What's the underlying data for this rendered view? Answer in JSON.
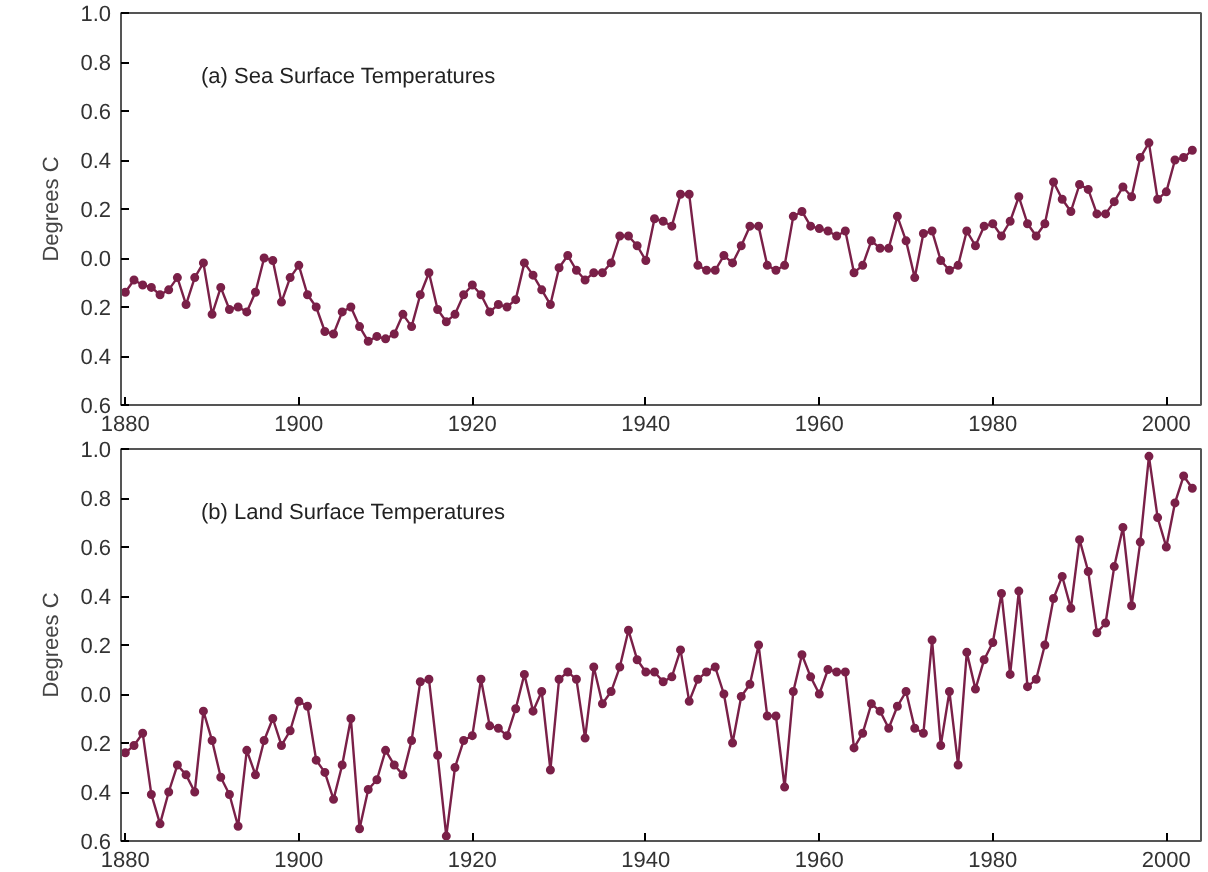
{
  "chart_data": [
    {
      "type": "line",
      "ylabel": "Degrees C",
      "annotations": [
        "(a) Sea Surface Temperatures"
      ],
      "marker": "circle",
      "line_style": "solid",
      "grid": false,
      "x": [
        1880,
        1881,
        1882,
        1883,
        1884,
        1885,
        1886,
        1887,
        1888,
        1889,
        1890,
        1891,
        1892,
        1893,
        1894,
        1895,
        1896,
        1897,
        1898,
        1899,
        1900,
        1901,
        1902,
        1903,
        1904,
        1905,
        1906,
        1907,
        1908,
        1909,
        1910,
        1911,
        1912,
        1913,
        1914,
        1915,
        1916,
        1917,
        1918,
        1919,
        1920,
        1921,
        1922,
        1923,
        1924,
        1925,
        1926,
        1927,
        1928,
        1929,
        1930,
        1931,
        1932,
        1933,
        1934,
        1935,
        1936,
        1937,
        1938,
        1939,
        1940,
        1941,
        1942,
        1943,
        1944,
        1945,
        1946,
        1947,
        1948,
        1949,
        1950,
        1951,
        1952,
        1953,
        1954,
        1955,
        1956,
        1957,
        1958,
        1959,
        1960,
        1961,
        1962,
        1963,
        1964,
        1965,
        1966,
        1967,
        1968,
        1969,
        1970,
        1971,
        1972,
        1973,
        1974,
        1975,
        1976,
        1977,
        1978,
        1979,
        1980,
        1981,
        1982,
        1983,
        1984,
        1985,
        1986,
        1987,
        1988,
        1989,
        1990,
        1991,
        1992,
        1993,
        1994,
        1995,
        1996,
        1997,
        1998,
        1999,
        2000,
        2001,
        2002,
        2003
      ],
      "series": [
        {
          "color": "#7a2048",
          "values": [
            -0.14,
            -0.09,
            -0.11,
            -0.12,
            -0.15,
            -0.13,
            -0.08,
            -0.19,
            -0.08,
            -0.02,
            -0.23,
            -0.12,
            -0.21,
            -0.2,
            -0.22,
            -0.14,
            0.0,
            -0.01,
            -0.18,
            -0.08,
            -0.03,
            -0.15,
            -0.2,
            -0.3,
            -0.31,
            -0.22,
            -0.2,
            -0.28,
            -0.34,
            -0.32,
            -0.33,
            -0.31,
            -0.23,
            -0.28,
            -0.15,
            -0.06,
            -0.21,
            -0.26,
            -0.23,
            -0.15,
            -0.11,
            -0.15,
            -0.22,
            -0.19,
            -0.2,
            -0.17,
            -0.02,
            -0.07,
            -0.13,
            -0.19,
            -0.04,
            0.01,
            -0.05,
            -0.09,
            -0.06,
            -0.06,
            -0.02,
            0.09,
            0.09,
            0.05,
            -0.01,
            0.16,
            0.15,
            0.13,
            0.26,
            0.26,
            -0.03,
            -0.05,
            -0.05,
            0.01,
            -0.02,
            0.05,
            0.13,
            0.13,
            -0.03,
            -0.05,
            -0.03,
            0.17,
            0.19,
            0.13,
            0.12,
            0.11,
            0.09,
            0.11,
            -0.06,
            -0.03,
            0.07,
            0.04,
            0.04,
            0.17,
            0.07,
            -0.08,
            0.1,
            0.11,
            -0.01,
            -0.05,
            -0.03,
            0.11,
            0.05,
            0.13,
            0.14,
            0.09,
            0.15,
            0.25,
            0.14,
            0.09,
            0.14,
            0.31,
            0.24,
            0.19,
            0.3,
            0.28,
            0.18,
            0.18,
            0.23,
            0.29,
            0.25,
            0.41,
            0.47,
            0.24,
            0.27,
            0.4,
            0.41,
            0.44
          ]
        }
      ],
      "xlim": [
        1879.5,
        2004
      ],
      "xticks": [
        1880,
        1900,
        1920,
        1940,
        1960,
        1980,
        2000
      ],
      "ylim": [
        -0.6,
        1.0
      ],
      "yticks": [
        {
          "value": -0.6,
          "label": "0.6"
        },
        {
          "value": -0.4,
          "label": "0.4"
        },
        {
          "value": -0.2,
          "label": "0.2"
        },
        {
          "value": 0.0,
          "label": "0.0"
        },
        0.2,
        0.4,
        0.6,
        0.8,
        {
          "value": 1.0,
          "label": "1.0"
        }
      ]
    },
    {
      "type": "line",
      "ylabel": "Degrees C",
      "annotations": [
        "(b) Land Surface Temperatures"
      ],
      "marker": "circle",
      "line_style": "solid",
      "grid": false,
      "x": [
        1880,
        1881,
        1882,
        1883,
        1884,
        1885,
        1886,
        1887,
        1888,
        1889,
        1890,
        1891,
        1892,
        1893,
        1894,
        1895,
        1896,
        1897,
        1898,
        1899,
        1900,
        1901,
        1902,
        1903,
        1904,
        1905,
        1906,
        1907,
        1908,
        1909,
        1910,
        1911,
        1912,
        1913,
        1914,
        1915,
        1916,
        1917,
        1918,
        1919,
        1920,
        1921,
        1922,
        1923,
        1924,
        1925,
        1926,
        1927,
        1928,
        1929,
        1930,
        1931,
        1932,
        1933,
        1934,
        1935,
        1936,
        1937,
        1938,
        1939,
        1940,
        1941,
        1942,
        1943,
        1944,
        1945,
        1946,
        1947,
        1948,
        1949,
        1950,
        1951,
        1952,
        1953,
        1954,
        1955,
        1956,
        1957,
        1958,
        1959,
        1960,
        1961,
        1962,
        1963,
        1964,
        1965,
        1966,
        1967,
        1968,
        1969,
        1970,
        1971,
        1972,
        1973,
        1974,
        1975,
        1976,
        1977,
        1978,
        1979,
        1980,
        1981,
        1982,
        1983,
        1984,
        1985,
        1986,
        1987,
        1988,
        1989,
        1990,
        1991,
        1992,
        1993,
        1994,
        1995,
        1996,
        1997,
        1998,
        1999,
        2000,
        2001,
        2002,
        2003
      ],
      "series": [
        {
          "color": "#7a2048",
          "values": [
            -0.24,
            -0.21,
            -0.16,
            -0.41,
            -0.53,
            -0.4,
            -0.29,
            -0.33,
            -0.4,
            -0.07,
            -0.19,
            -0.34,
            -0.41,
            -0.54,
            -0.23,
            -0.33,
            -0.19,
            -0.1,
            -0.21,
            -0.15,
            -0.03,
            -0.05,
            -0.27,
            -0.32,
            -0.43,
            -0.29,
            -0.1,
            -0.55,
            -0.39,
            -0.35,
            -0.23,
            -0.29,
            -0.33,
            -0.19,
            0.05,
            0.06,
            -0.25,
            -0.58,
            -0.3,
            -0.19,
            -0.17,
            0.06,
            -0.13,
            -0.14,
            -0.17,
            -0.06,
            0.08,
            -0.07,
            0.01,
            -0.31,
            0.06,
            0.09,
            0.06,
            -0.18,
            0.11,
            -0.04,
            0.01,
            0.11,
            0.26,
            0.14,
            0.09,
            0.09,
            0.05,
            0.07,
            0.18,
            -0.03,
            0.06,
            0.09,
            0.11,
            0.0,
            -0.2,
            -0.01,
            0.04,
            0.2,
            -0.09,
            -0.09,
            -0.38,
            0.01,
            0.16,
            0.07,
            0.0,
            0.1,
            0.09,
            0.09,
            -0.22,
            -0.16,
            -0.04,
            -0.07,
            -0.14,
            -0.05,
            0.01,
            -0.14,
            -0.16,
            0.22,
            -0.21,
            0.01,
            -0.29,
            0.17,
            0.02,
            0.14,
            0.21,
            0.41,
            0.08,
            0.42,
            0.03,
            0.06,
            0.2,
            0.39,
            0.48,
            0.35,
            0.63,
            0.5,
            0.25,
            0.29,
            0.52,
            0.68,
            0.36,
            0.62,
            0.97,
            0.72,
            0.6,
            0.78,
            0.89,
            0.84
          ]
        }
      ],
      "xlim": [
        1879.5,
        2004
      ],
      "xticks": [
        1880,
        1900,
        1920,
        1940,
        1960,
        1980,
        2000
      ],
      "ylim": [
        -0.6,
        1.0
      ],
      "yticks": [
        {
          "value": -0.6,
          "label": "0.6"
        },
        {
          "value": -0.4,
          "label": "0.4"
        },
        {
          "value": -0.2,
          "label": "0.2"
        },
        {
          "value": 0.0,
          "label": "0.0"
        },
        0.2,
        0.4,
        0.6,
        0.8,
        {
          "value": 1.0,
          "label": "1.0"
        }
      ]
    }
  ]
}
